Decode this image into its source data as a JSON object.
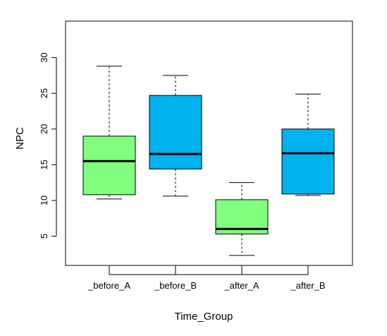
{
  "chart_data": {
    "type": "boxplot",
    "xlabel": "Time_Group",
    "ylabel": "NPC",
    "ylim": [
      0.9,
      35.1
    ],
    "yticks": [
      5,
      10,
      15,
      20,
      25,
      30
    ],
    "categories": [
      "_before_A",
      "_before_B",
      "_after_A",
      "_after_B"
    ],
    "boxes": [
      {
        "category": "_before_A",
        "min": 10.2,
        "q1": 10.8,
        "median": 15.5,
        "q3": 19.0,
        "max": 28.8,
        "color": "#80ff80"
      },
      {
        "category": "_before_B",
        "min": 10.6,
        "q1": 14.4,
        "median": 16.5,
        "q3": 24.7,
        "max": 27.5,
        "color": "#00b2ee"
      },
      {
        "category": "_after_A",
        "min": 2.3,
        "q1": 5.3,
        "median": 6.0,
        "q3": 10.1,
        "max": 12.5,
        "color": "#80ff80"
      },
      {
        "category": "_after_B",
        "min": 10.7,
        "q1": 10.9,
        "median": 16.6,
        "q3": 20.0,
        "max": 24.9,
        "color": "#00b2ee"
      }
    ]
  }
}
